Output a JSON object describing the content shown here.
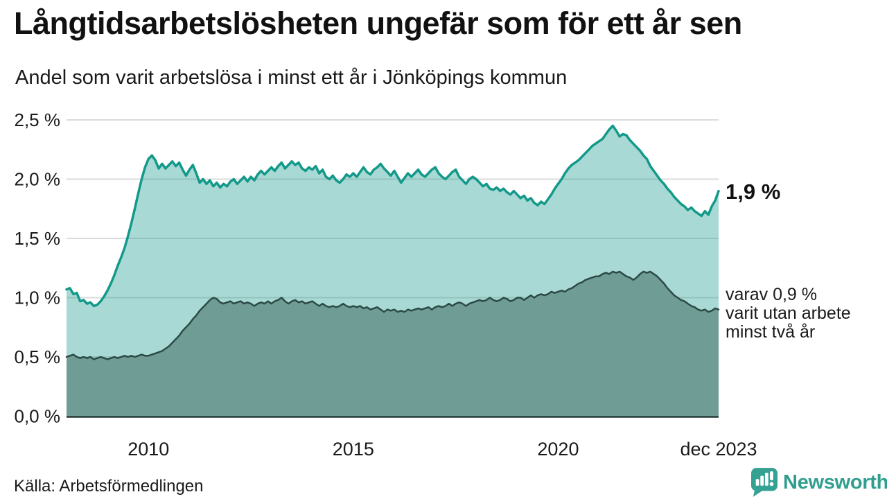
{
  "header": {
    "title": "Långtidsarbetslösheten ungefär som för ett år sen",
    "subtitle": "Andel som varit arbetslösa i minst ett år i Jönköpings kommun"
  },
  "footer": {
    "source": "Källa: Arbetsförmedlingen",
    "logo_text": "Newsworthy"
  },
  "colors": {
    "accent_teal": "#13998a",
    "light_fill": "rgba(17,150,137,0.36)",
    "dark_fill": "#6f9c95",
    "dark_stroke": "#2c4a45",
    "gridline": "#dbdbdb",
    "axis_line": "#263c38",
    "text": "#1a1a1a",
    "logo_teal": "#2f9e8f"
  },
  "chart_data": {
    "type": "area",
    "title": "Långtidsarbetslösheten ungefär som för ett år sen",
    "subtitle": "Andel som varit arbetslösa i minst ett år i Jönköpings kommun",
    "source": "Källa: Arbetsförmedlingen",
    "grid": true,
    "legend": "none",
    "x_start": 2008.0,
    "x_end": 2023.917,
    "x_step": "monthly",
    "ylim": [
      0,
      2.5
    ],
    "y_ticks": {
      "values": [
        0,
        0.5,
        1.0,
        1.5,
        2.0,
        2.5
      ],
      "labels": [
        "0,0 %",
        "0,5 %",
        "1,0 %",
        "1,5 %",
        "2,0 %",
        "2,5 %"
      ]
    },
    "x_ticks": {
      "values": [
        2010,
        2015,
        2020,
        2023.917
      ],
      "labels": [
        "2010",
        "2015",
        "2020",
        "dec 2023"
      ]
    },
    "annotations": [
      {
        "text": "1,9 %"
      },
      {
        "text": "varav 0,9 %\nvarit utan arbete\nminst två år"
      }
    ],
    "series": [
      {
        "name": "minst ett år",
        "stroke": "#13998a",
        "stroke_width": 3.5,
        "fill": "rgba(17,150,137,0.36)",
        "values": [
          1.07,
          1.08,
          1.03,
          1.04,
          0.97,
          0.98,
          0.95,
          0.96,
          0.93,
          0.94,
          0.97,
          1.01,
          1.06,
          1.12,
          1.19,
          1.27,
          1.34,
          1.42,
          1.52,
          1.63,
          1.75,
          1.88,
          2.0,
          2.1,
          2.17,
          2.2,
          2.16,
          2.09,
          2.13,
          2.09,
          2.12,
          2.15,
          2.11,
          2.14,
          2.08,
          2.03,
          2.08,
          2.12,
          2.05,
          1.97,
          2.0,
          1.96,
          1.99,
          1.94,
          1.97,
          1.93,
          1.96,
          1.94,
          1.98,
          2.0,
          1.96,
          1.99,
          2.02,
          1.98,
          2.02,
          1.99,
          2.04,
          2.07,
          2.04,
          2.07,
          2.1,
          2.07,
          2.11,
          2.14,
          2.09,
          2.12,
          2.15,
          2.12,
          2.14,
          2.09,
          2.07,
          2.1,
          2.08,
          2.11,
          2.05,
          2.08,
          2.02,
          2.0,
          2.03,
          1.99,
          1.97,
          2.0,
          2.04,
          2.02,
          2.05,
          2.02,
          2.06,
          2.1,
          2.06,
          2.04,
          2.08,
          2.1,
          2.13,
          2.09,
          2.06,
          2.03,
          2.07,
          2.02,
          1.97,
          2.01,
          2.05,
          2.02,
          2.05,
          2.08,
          2.04,
          2.02,
          2.05,
          2.08,
          2.1,
          2.05,
          2.02,
          2.0,
          2.03,
          2.06,
          2.08,
          2.02,
          1.99,
          1.96,
          2.0,
          2.02,
          2.0,
          1.97,
          1.94,
          1.96,
          1.92,
          1.91,
          1.93,
          1.9,
          1.92,
          1.89,
          1.87,
          1.9,
          1.87,
          1.84,
          1.86,
          1.82,
          1.84,
          1.8,
          1.78,
          1.81,
          1.79,
          1.83,
          1.87,
          1.92,
          1.96,
          2.0,
          2.05,
          2.09,
          2.12,
          2.14,
          2.16,
          2.19,
          2.22,
          2.25,
          2.28,
          2.3,
          2.32,
          2.34,
          2.38,
          2.42,
          2.45,
          2.41,
          2.36,
          2.38,
          2.37,
          2.33,
          2.3,
          2.27,
          2.24,
          2.2,
          2.17,
          2.11,
          2.07,
          2.03,
          1.99,
          1.96,
          1.92,
          1.89,
          1.85,
          1.82,
          1.79,
          1.77,
          1.74,
          1.76,
          1.73,
          1.71,
          1.69,
          1.73,
          1.7,
          1.77,
          1.82,
          1.9
        ]
      },
      {
        "name": "minst två år",
        "stroke": "#2c4a45",
        "stroke_width": 2.5,
        "fill": "#6f9c95",
        "values": [
          0.5,
          0.51,
          0.52,
          0.5,
          0.49,
          0.5,
          0.49,
          0.5,
          0.48,
          0.49,
          0.5,
          0.49,
          0.48,
          0.49,
          0.5,
          0.49,
          0.5,
          0.51,
          0.5,
          0.51,
          0.5,
          0.51,
          0.52,
          0.51,
          0.51,
          0.52,
          0.53,
          0.54,
          0.55,
          0.57,
          0.59,
          0.62,
          0.65,
          0.68,
          0.72,
          0.75,
          0.78,
          0.82,
          0.85,
          0.89,
          0.92,
          0.95,
          0.98,
          1.0,
          0.99,
          0.96,
          0.95,
          0.96,
          0.97,
          0.95,
          0.96,
          0.97,
          0.95,
          0.96,
          0.95,
          0.93,
          0.95,
          0.96,
          0.95,
          0.97,
          0.95,
          0.97,
          0.98,
          1.0,
          0.97,
          0.95,
          0.97,
          0.98,
          0.96,
          0.97,
          0.95,
          0.96,
          0.97,
          0.95,
          0.93,
          0.95,
          0.93,
          0.92,
          0.93,
          0.92,
          0.93,
          0.95,
          0.93,
          0.92,
          0.93,
          0.92,
          0.93,
          0.91,
          0.92,
          0.9,
          0.91,
          0.92,
          0.9,
          0.88,
          0.9,
          0.89,
          0.9,
          0.88,
          0.89,
          0.88,
          0.9,
          0.89,
          0.9,
          0.91,
          0.9,
          0.91,
          0.92,
          0.9,
          0.92,
          0.93,
          0.92,
          0.93,
          0.95,
          0.93,
          0.95,
          0.96,
          0.95,
          0.93,
          0.95,
          0.96,
          0.97,
          0.98,
          0.97,
          0.98,
          1.0,
          0.98,
          0.97,
          0.98,
          1.0,
          0.99,
          0.97,
          0.98,
          1.0,
          1.0,
          0.98,
          1.0,
          1.02,
          1.0,
          1.02,
          1.03,
          1.02,
          1.03,
          1.05,
          1.04,
          1.05,
          1.06,
          1.05,
          1.07,
          1.08,
          1.1,
          1.12,
          1.13,
          1.15,
          1.16,
          1.17,
          1.18,
          1.18,
          1.2,
          1.21,
          1.2,
          1.22,
          1.21,
          1.22,
          1.2,
          1.18,
          1.17,
          1.15,
          1.17,
          1.2,
          1.22,
          1.21,
          1.22,
          1.2,
          1.18,
          1.15,
          1.12,
          1.08,
          1.05,
          1.02,
          1.0,
          0.98,
          0.97,
          0.95,
          0.93,
          0.92,
          0.9,
          0.89,
          0.9,
          0.88,
          0.89,
          0.91,
          0.9
        ]
      }
    ]
  }
}
